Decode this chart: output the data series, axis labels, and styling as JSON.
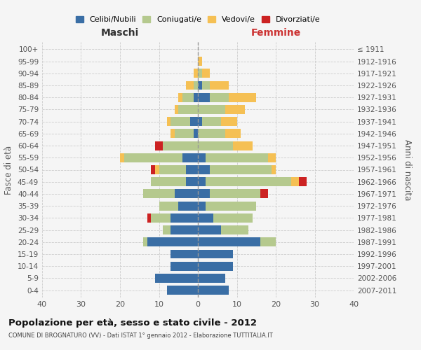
{
  "age_groups": [
    "0-4",
    "5-9",
    "10-14",
    "15-19",
    "20-24",
    "25-29",
    "30-34",
    "35-39",
    "40-44",
    "45-49",
    "50-54",
    "55-59",
    "60-64",
    "65-69",
    "70-74",
    "75-79",
    "80-84",
    "85-89",
    "90-94",
    "95-99",
    "100+"
  ],
  "birth_years": [
    "2007-2011",
    "2002-2006",
    "1997-2001",
    "1992-1996",
    "1987-1991",
    "1982-1986",
    "1977-1981",
    "1972-1976",
    "1967-1971",
    "1962-1966",
    "1957-1961",
    "1952-1956",
    "1947-1951",
    "1942-1946",
    "1937-1941",
    "1932-1936",
    "1927-1931",
    "1922-1926",
    "1917-1921",
    "1912-1916",
    "≤ 1911"
  ],
  "colors": {
    "celibi": "#3A6EA5",
    "coniugati": "#B5C98E",
    "vedovi": "#F5C054",
    "divorziati": "#CC2222"
  },
  "males": {
    "celibi": [
      8,
      11,
      7,
      7,
      13,
      7,
      7,
      5,
      6,
      3,
      3,
      4,
      0,
      1,
      2,
      0,
      1,
      0,
      0,
      0,
      0
    ],
    "coniugati": [
      0,
      0,
      0,
      0,
      1,
      2,
      5,
      5,
      8,
      9,
      7,
      15,
      9,
      5,
      5,
      5,
      3,
      1,
      0,
      0,
      0
    ],
    "vedovi": [
      0,
      0,
      0,
      0,
      0,
      0,
      0,
      0,
      0,
      0,
      1,
      1,
      0,
      1,
      1,
      1,
      1,
      2,
      1,
      0,
      0
    ],
    "divorziati": [
      0,
      0,
      0,
      0,
      0,
      0,
      1,
      0,
      0,
      0,
      1,
      0,
      2,
      0,
      0,
      0,
      0,
      0,
      0,
      0,
      0
    ]
  },
  "females": {
    "celibi": [
      8,
      7,
      9,
      9,
      16,
      6,
      4,
      2,
      3,
      2,
      3,
      2,
      0,
      0,
      1,
      0,
      3,
      1,
      0,
      0,
      0
    ],
    "coniugati": [
      0,
      0,
      0,
      0,
      4,
      7,
      10,
      13,
      13,
      22,
      16,
      16,
      9,
      7,
      5,
      7,
      5,
      2,
      1,
      0,
      0
    ],
    "vedovi": [
      0,
      0,
      0,
      0,
      0,
      0,
      0,
      0,
      0,
      2,
      1,
      2,
      5,
      4,
      4,
      5,
      7,
      5,
      2,
      1,
      0
    ],
    "divorziati": [
      0,
      0,
      0,
      0,
      0,
      0,
      0,
      0,
      2,
      2,
      0,
      0,
      0,
      0,
      0,
      0,
      0,
      0,
      0,
      0,
      0
    ]
  },
  "title": "Popolazione per età, sesso e stato civile - 2012",
  "subtitle": "COMUNE DI BROGNATURO (VV) - Dati ISTAT 1° gennaio 2012 - Elaborazione TUTTITALIA.IT",
  "xlabel_left": "Maschi",
  "xlabel_right": "Femmine",
  "ylabel_left": "Fasce di età",
  "ylabel_right": "Anni di nascita",
  "xlim": 40,
  "legend_labels": [
    "Celibi/Nubili",
    "Coniugati/e",
    "Vedovi/e",
    "Divorziati/e"
  ],
  "bg_color": "#f5f5f5",
  "grid_color": "#cccccc"
}
